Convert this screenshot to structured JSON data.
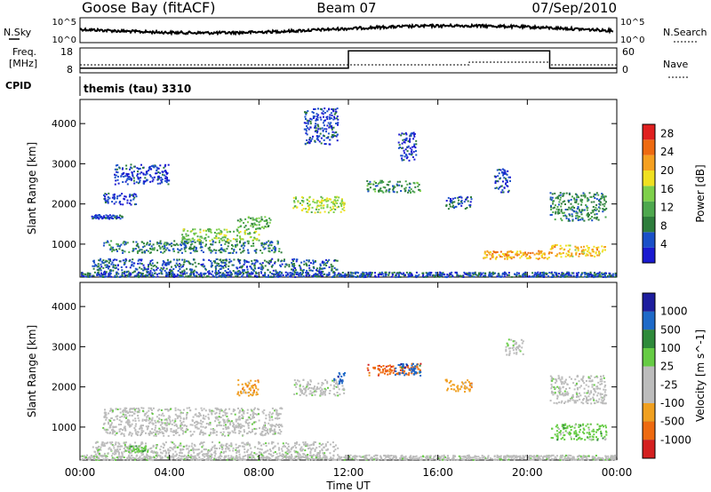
{
  "header": {
    "station": "Goose Bay (fitACF)",
    "beam": "Beam 07",
    "date": "07/Sep/2010"
  },
  "noise_panel": {
    "left_label": "N.Sky",
    "right_label": "N.Search",
    "left_ticks": [
      "10^5",
      "10^0"
    ],
    "right_ticks": [
      "10^5",
      "10^0"
    ]
  },
  "freq_panel": {
    "left_label_1": "Freq.",
    "left_label_2": "[MHz]",
    "right_label": "Nave",
    "left_ticks": [
      "18",
      "8"
    ],
    "right_ticks": [
      "60",
      "0"
    ]
  },
  "cpid": {
    "label": "CPID",
    "text": "themis (tau) 3310"
  },
  "colors": {
    "power_scale": [
      "#1a1ad0",
      "#1a50c8",
      "#2e7d3c",
      "#4ea84e",
      "#7ed04a",
      "#f0e020",
      "#f5a020",
      "#ee6a10",
      "#e02020"
    ],
    "velocity_scale": [
      "#1e1e9e",
      "#1e6ac8",
      "#2e8a3a",
      "#66cc44",
      "#bcbcbc",
      "#bcbcbc",
      "#f0a020",
      "#ee6a10",
      "#d42020"
    ]
  },
  "chart_data": [
    {
      "type": "heatmap",
      "name": "power",
      "xlabel": "Time UT",
      "ylabel": "Slant Range [km]",
      "colorbar_label": "Power [dB]",
      "x_range_hours": [
        0,
        24
      ],
      "x_ticks": [
        "00:00",
        "04:00",
        "08:00",
        "12:00",
        "16:00",
        "20:00",
        "00:00"
      ],
      "y_range_km": [
        180,
        4600
      ],
      "y_ticks": [
        1000,
        2000,
        3000,
        4000
      ],
      "colorbar_ticks": [
        4,
        8,
        12,
        16,
        20,
        24,
        28
      ],
      "colorbar_range": [
        0,
        30
      ],
      "echo_regions": [
        {
          "t0": 0.0,
          "t1": 24.0,
          "r0": 200,
          "r1": 320,
          "level": 5
        },
        {
          "t0": 0.5,
          "t1": 11.5,
          "r0": 320,
          "r1": 650,
          "level": 6
        },
        {
          "t0": 1.0,
          "t1": 9.0,
          "r0": 800,
          "r1": 1100,
          "level": 8
        },
        {
          "t0": 4.5,
          "t1": 8.0,
          "r0": 1100,
          "r1": 1400,
          "level": 14
        },
        {
          "t0": 7.0,
          "t1": 8.5,
          "r0": 1400,
          "r1": 1700,
          "level": 12
        },
        {
          "t0": 0.5,
          "t1": 2.0,
          "r0": 1650,
          "r1": 1750,
          "level": 5
        },
        {
          "t0": 1.0,
          "t1": 2.5,
          "r0": 2000,
          "r1": 2300,
          "level": 4
        },
        {
          "t0": 1.5,
          "t1": 4.0,
          "r0": 2500,
          "r1": 3000,
          "level": 4
        },
        {
          "t0": 9.5,
          "t1": 11.8,
          "r0": 1800,
          "r1": 2200,
          "level": 16
        },
        {
          "t0": 10.0,
          "t1": 11.5,
          "r0": 3500,
          "r1": 4400,
          "level": 4
        },
        {
          "t0": 12.8,
          "t1": 15.2,
          "r0": 2300,
          "r1": 2600,
          "level": 10
        },
        {
          "t0": 14.2,
          "t1": 15.0,
          "r0": 3100,
          "r1": 3800,
          "level": 4
        },
        {
          "t0": 16.3,
          "t1": 17.5,
          "r0": 1900,
          "r1": 2200,
          "level": 6
        },
        {
          "t0": 18.5,
          "t1": 19.2,
          "r0": 2300,
          "r1": 2900,
          "level": 4
        },
        {
          "t0": 18.0,
          "t1": 21.0,
          "r0": 650,
          "r1": 850,
          "level": 22
        },
        {
          "t0": 21.0,
          "t1": 23.5,
          "r0": 700,
          "r1": 1000,
          "level": 20
        },
        {
          "t0": 21.0,
          "t1": 23.5,
          "r0": 1600,
          "r1": 2300,
          "level": 9
        }
      ]
    },
    {
      "type": "heatmap",
      "name": "velocity",
      "xlabel": "Time UT",
      "ylabel": "Slant Range [km]",
      "colorbar_label": "Velocity [m s^-1]",
      "x_range_hours": [
        0,
        24
      ],
      "x_ticks": [
        "00:00",
        "04:00",
        "08:00",
        "12:00",
        "16:00",
        "20:00",
        "00:00"
      ],
      "y_range_km": [
        180,
        4600
      ],
      "y_ticks": [
        1000,
        2000,
        3000,
        4000
      ],
      "colorbar_ticks": [
        "1000",
        "500",
        "100",
        "25",
        "-25",
        "-100",
        "-500",
        "-1000"
      ],
      "echo_regions": [
        {
          "t0": 0.0,
          "t1": 24.0,
          "r0": 200,
          "r1": 320,
          "vclass": 4
        },
        {
          "t0": 0.5,
          "t1": 11.5,
          "r0": 320,
          "r1": 650,
          "vclass": 4
        },
        {
          "t0": 2.0,
          "t1": 3.0,
          "r0": 400,
          "r1": 550,
          "vclass": 3
        },
        {
          "t0": 1.0,
          "t1": 9.0,
          "r0": 800,
          "r1": 1500,
          "vclass": 4
        },
        {
          "t0": 7.0,
          "t1": 8.0,
          "r0": 1800,
          "r1": 2200,
          "vclass": 6
        },
        {
          "t0": 9.5,
          "t1": 11.8,
          "r0": 1800,
          "r1": 2200,
          "vclass": 4
        },
        {
          "t0": 11.3,
          "t1": 11.8,
          "r0": 2100,
          "r1": 2400,
          "vclass": 1
        },
        {
          "t0": 12.8,
          "t1": 15.2,
          "r0": 2300,
          "r1": 2600,
          "vclass": 7
        },
        {
          "t0": 14.0,
          "t1": 15.2,
          "r0": 2300,
          "r1": 2600,
          "vclass": 1
        },
        {
          "t0": 16.3,
          "t1": 17.5,
          "r0": 1900,
          "r1": 2200,
          "vclass": 6
        },
        {
          "t0": 19.0,
          "t1": 19.8,
          "r0": 2800,
          "r1": 3200,
          "vclass": 4
        },
        {
          "t0": 21.0,
          "t1": 23.5,
          "r0": 700,
          "r1": 1100,
          "vclass": 3
        },
        {
          "t0": 21.0,
          "t1": 23.5,
          "r0": 1600,
          "r1": 2300,
          "vclass": 4
        }
      ]
    }
  ]
}
